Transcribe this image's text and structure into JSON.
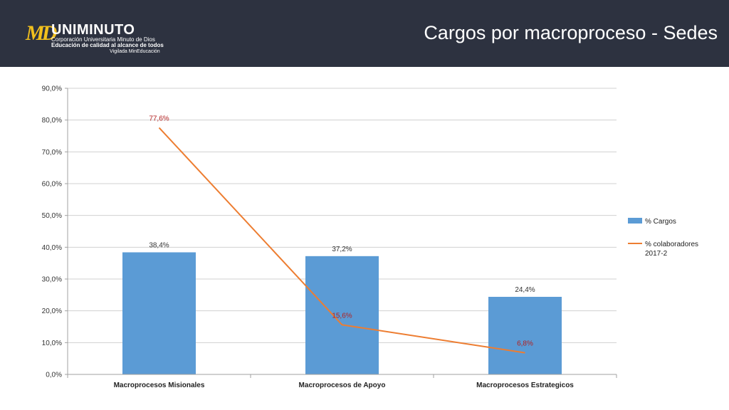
{
  "header": {
    "title": "Cargos por macroproceso - Sedes",
    "logo": {
      "mark": "MD",
      "name": "UNIMINUTO",
      "line1": "Corporación Universitaria Minuto de Dios",
      "line2": "Educación de calidad al alcance de todos",
      "line3": "Vigilada MinEducación"
    }
  },
  "colors": {
    "header_bg": "#2d3240",
    "bar": "#5b9bd5",
    "line": "#ed7d31",
    "line_label": "#b22222",
    "logo_accent": "#f2c01d"
  },
  "chart_data": {
    "type": "bar",
    "categories": [
      "Macroprocesos Misionales",
      "Macroprocesos de Apoyo",
      "Macroprocesos Estrategicos"
    ],
    "series": [
      {
        "name": "% Cargos",
        "type": "bar",
        "values": [
          38.4,
          37.2,
          24.4
        ],
        "labels": [
          "38,4%",
          "37,2%",
          "24,4%"
        ]
      },
      {
        "name": "% colaboradores 2017-2",
        "legend_lines": [
          "% colaboradores",
          "2017-2"
        ],
        "type": "line",
        "values": [
          77.6,
          15.6,
          6.8
        ],
        "labels": [
          "77,6%",
          "15,6%",
          "6,8%"
        ]
      }
    ],
    "ylim": [
      0,
      90
    ],
    "yticks": [
      0,
      10,
      20,
      30,
      40,
      50,
      60,
      70,
      80,
      90
    ],
    "ytick_labels": [
      "0,0%",
      "10,0%",
      "20,0%",
      "30,0%",
      "40,0%",
      "50,0%",
      "60,0%",
      "70,0%",
      "80,0%",
      "90,0%"
    ],
    "grid": true,
    "legend_position": "right",
    "title": "",
    "xlabel": "",
    "ylabel": ""
  }
}
